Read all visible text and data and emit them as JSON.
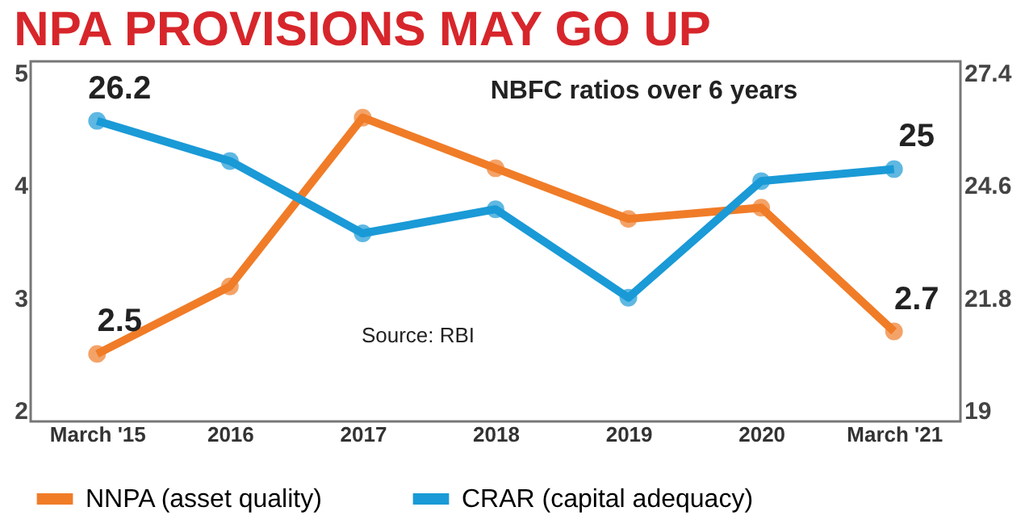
{
  "chart_data": {
    "type": "line",
    "title": "NPA PROVISIONS MAY GO UP",
    "categories": [
      "March '15",
      "2016",
      "2017",
      "2018",
      "2019",
      "2020",
      "March '21"
    ],
    "series": [
      {
        "name": "NNPA (asset quality)",
        "color": "#f07c28",
        "values": [
          2.5,
          3.1,
          4.6,
          4.15,
          3.7,
          3.8,
          2.7
        ],
        "value_labels": [
          "2.5",
          null,
          null,
          null,
          null,
          null,
          "2.7"
        ]
      },
      {
        "name": "CRAR (capital adequacy)",
        "color": "#1a9ad6",
        "axis": "y2",
        "values": [
          26.2,
          25.2,
          23.4,
          24.0,
          21.8,
          24.7,
          25
        ],
        "value_labels": [
          "26.2",
          null,
          null,
          null,
          null,
          null,
          "25"
        ]
      }
    ],
    "ylim": [
      1.9,
      5.1
    ],
    "yticks": [
      2,
      3,
      4,
      5
    ],
    "y2lim": [
      18.72,
      27.68
    ],
    "y2ticks": [
      19,
      21.8,
      24.6,
      27.4
    ],
    "annotations": [
      "NBFC ratios over 6 years",
      "Source: RBI"
    ],
    "marker": "circle",
    "legend": "bottom",
    "grid": false
  }
}
